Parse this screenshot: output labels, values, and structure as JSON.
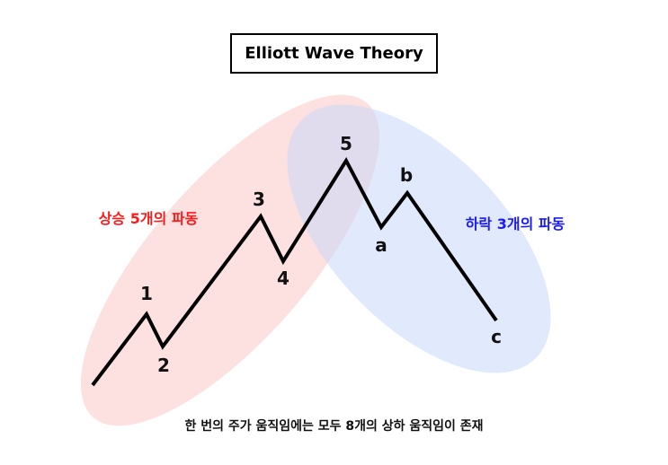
{
  "title": "Elliott Wave Theory",
  "groups": {
    "impulse": {
      "label": "상승 5개의 파동",
      "color": "#ff1a1a",
      "fill": "#fcd6d6"
    },
    "corrective": {
      "label": "하락 3개의 파동",
      "color": "#1a1aff",
      "fill": "#d3e1fb"
    }
  },
  "wave_labels": [
    "1",
    "2",
    "3",
    "4",
    "5",
    "a",
    "b",
    "c"
  ],
  "caption": "한 번의 주가 움직임에는 모두 8개의 상하 움직임이 존재"
}
